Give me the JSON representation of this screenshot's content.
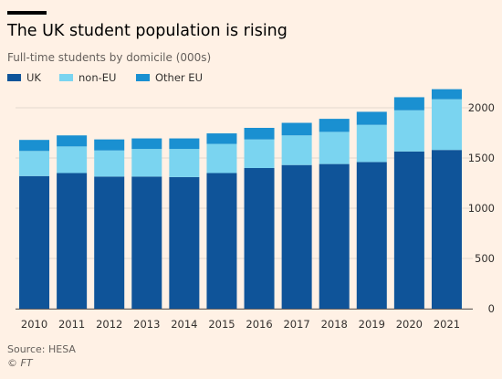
{
  "title": "The UK student population is rising",
  "subtitle": "Full-time students by domicile (000s)",
  "source": "Source: HESA",
  "copyright": "© FT",
  "colors": {
    "background": "#fff1e5",
    "gridline": "#e3d9d0",
    "UK": "#0f5499",
    "non-EU": "#7ad4f0",
    "Other EU": "#1a90d1"
  },
  "legend": [
    {
      "label": "UK",
      "color": "#0f5499"
    },
    {
      "label": "non-EU",
      "color": "#7ad4f0"
    },
    {
      "label": "Other EU",
      "color": "#1a90d1"
    }
  ],
  "chart_data": {
    "type": "bar",
    "stacked": true,
    "title": "The UK student population is rising",
    "subtitle": "Full-time students by domicile (000s)",
    "categories": [
      "2010",
      "2011",
      "2012",
      "2013",
      "2014",
      "2015",
      "2016",
      "2017",
      "2018",
      "2019",
      "2020",
      "2021"
    ],
    "series": [
      {
        "name": "UK",
        "color": "#0f5499",
        "values": [
          1320,
          1350,
          1315,
          1315,
          1310,
          1350,
          1400,
          1430,
          1440,
          1460,
          1565,
          1580
        ]
      },
      {
        "name": "non-EU",
        "color": "#7ad4f0",
        "values": [
          250,
          265,
          260,
          275,
          280,
          290,
          285,
          295,
          320,
          370,
          410,
          505
        ]
      },
      {
        "name": "Other EU",
        "color": "#1a90d1",
        "values": [
          110,
          110,
          110,
          105,
          105,
          105,
          115,
          125,
          130,
          130,
          130,
          100
        ]
      }
    ],
    "ylim": [
      0,
      2000
    ],
    "yticks": [
      0,
      500,
      1000,
      1500,
      2000
    ],
    "y_axis_side": "right",
    "grid": true,
    "legend_position": "top-left"
  }
}
